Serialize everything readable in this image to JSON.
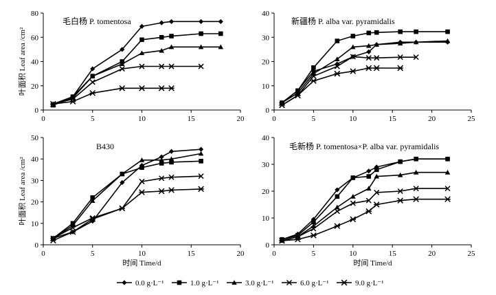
{
  "chart_data": [
    {
      "type": "line",
      "title": "毛白杨 P. tomentosa",
      "xlabel": "",
      "ylabel": "叶面积 Leaf area /cm²",
      "xlim": [
        0,
        20
      ],
      "ylim": [
        0,
        80
      ],
      "xticks": [
        0,
        5,
        10,
        15,
        20
      ],
      "yticks": [
        0,
        20,
        40,
        60,
        80
      ],
      "series": [
        {
          "name": "0.0 g·L⁻¹",
          "marker": "diamond",
          "x": [
            1,
            3,
            5,
            8,
            10,
            12,
            13,
            16,
            18
          ],
          "values": [
            5,
            11,
            34,
            50,
            69,
            72,
            73,
            73,
            73
          ]
        },
        {
          "name": "1.0 g·L⁻¹",
          "marker": "square",
          "x": [
            1,
            3,
            5,
            8,
            10,
            12,
            13,
            16,
            18
          ],
          "values": [
            4,
            11,
            28,
            40,
            58,
            60,
            61,
            63,
            63
          ]
        },
        {
          "name": "3.0 g·L⁻¹",
          "marker": "triangle",
          "x": [
            1,
            3,
            5,
            8,
            10,
            12,
            13,
            16,
            18
          ],
          "values": [
            4,
            10,
            28,
            38,
            47,
            49,
            52,
            52,
            52
          ]
        },
        {
          "name": "6.0 g·L⁻¹",
          "marker": "cross",
          "x": [
            1,
            3,
            5,
            8,
            10,
            12,
            13,
            16
          ],
          "values": [
            5,
            9,
            23,
            34,
            36,
            36,
            36,
            36
          ]
        },
        {
          "name": "9.0 g·L⁻¹",
          "marker": "star",
          "x": [
            1,
            3,
            5,
            8,
            10,
            12,
            13
          ],
          "values": [
            5,
            7,
            14,
            18,
            18,
            18,
            18
          ]
        }
      ]
    },
    {
      "type": "line",
      "title": "新疆杨 P. alba var. pyramidalis",
      "xlabel": "",
      "ylabel": "",
      "xlim": [
        0,
        25
      ],
      "ylim": [
        0,
        40
      ],
      "xticks": [
        0,
        5,
        10,
        15,
        20,
        25
      ],
      "yticks": [
        0,
        10,
        20,
        30,
        40
      ],
      "series": [
        {
          "name": "0.0 g·L⁻¹",
          "marker": "diamond",
          "x": [
            1,
            3,
            5,
            8,
            10,
            12,
            13,
            16,
            18,
            22
          ],
          "values": [
            3,
            8,
            16,
            19,
            22,
            24,
            27,
            28,
            28,
            28
          ]
        },
        {
          "name": "1.0 g·L⁻¹",
          "marker": "square",
          "x": [
            1,
            3,
            5,
            8,
            10,
            12,
            13,
            16,
            18,
            22
          ],
          "values": [
            3,
            8,
            17.5,
            28.5,
            30.5,
            31.8,
            32,
            32.3,
            32.3,
            32.3
          ]
        },
        {
          "name": "3.0 g·L⁻¹",
          "marker": "triangle",
          "x": [
            1,
            3,
            5,
            8,
            10,
            12,
            13,
            16,
            18,
            22
          ],
          "values": [
            3,
            7,
            15,
            21,
            26,
            26.5,
            27,
            27.5,
            28,
            28.5
          ]
        },
        {
          "name": "6.0 g·L⁻¹",
          "marker": "cross",
          "x": [
            1,
            3,
            5,
            8,
            10,
            12,
            13,
            16,
            18
          ],
          "values": [
            2,
            6,
            14,
            18,
            22,
            21.5,
            21.5,
            21.8,
            21.8
          ]
        },
        {
          "name": "9.0 g·L⁻¹",
          "marker": "star",
          "x": [
            1,
            3,
            5,
            8,
            10,
            12,
            13,
            16
          ],
          "values": [
            2,
            6,
            12,
            15,
            16,
            17.3,
            17.3,
            17.3
          ]
        }
      ]
    },
    {
      "type": "line",
      "title": "B430",
      "xlabel": "时间 Time/d",
      "ylabel": "叶面积 Leaf area /cm²",
      "xlim": [
        0,
        20
      ],
      "ylim": [
        0,
        50
      ],
      "xticks": [
        0,
        5,
        10,
        15,
        20
      ],
      "yticks": [
        0,
        10,
        20,
        30,
        40,
        50
      ],
      "series": [
        {
          "name": "0.0 g·L⁻¹",
          "marker": "diamond",
          "x": [
            1,
            3,
            5,
            8,
            10,
            12,
            13,
            16
          ],
          "values": [
            3,
            6,
            11,
            29,
            37,
            41,
            43.5,
            44.5
          ]
        },
        {
          "name": "1.0 g·L⁻¹",
          "marker": "square",
          "x": [
            1,
            3,
            5,
            8,
            10,
            12,
            13,
            16
          ],
          "values": [
            3,
            10,
            22,
            33,
            36,
            38,
            38.5,
            39
          ]
        },
        {
          "name": "3.0 g·L⁻¹",
          "marker": "triangle",
          "x": [
            1,
            3,
            5,
            8,
            10,
            12,
            13,
            16
          ],
          "values": [
            3,
            9,
            20.5,
            33,
            39.5,
            39.5,
            40,
            42.5
          ]
        },
        {
          "name": "6.0 g·L⁻¹",
          "marker": "cross",
          "x": [
            1,
            3,
            5,
            8,
            10,
            12,
            13,
            16
          ],
          "values": [
            3,
            8,
            12.5,
            17,
            29.5,
            31,
            31.5,
            32
          ]
        },
        {
          "name": "9.0 g·L⁻¹",
          "marker": "star",
          "x": [
            1,
            3,
            5,
            8,
            10,
            12,
            13,
            16
          ],
          "values": [
            2,
            6,
            12,
            17,
            24.5,
            25,
            25.5,
            26
          ]
        }
      ]
    },
    {
      "type": "line",
      "title": "毛新杨 P. tomentosa×P. alba var. pyramidalis",
      "xlabel": "时间 Time/d",
      "ylabel": "",
      "xlim": [
        0,
        25
      ],
      "ylim": [
        0,
        40
      ],
      "xticks": [
        0,
        5,
        10,
        15,
        20,
        25
      ],
      "yticks": [
        0,
        10,
        20,
        30,
        40
      ],
      "series": [
        {
          "name": "0.0 g·L⁻¹",
          "marker": "diamond",
          "x": [
            1,
            3,
            5,
            8,
            10,
            12,
            13,
            16,
            18,
            22
          ],
          "values": [
            2,
            4,
            9.5,
            20.5,
            25,
            27.5,
            29,
            31,
            32,
            32
          ]
        },
        {
          "name": "1.0 g·L⁻¹",
          "marker": "square",
          "x": [
            1,
            3,
            5,
            8,
            10,
            12,
            13,
            16,
            18,
            22
          ],
          "values": [
            2,
            3.5,
            8.5,
            18,
            25,
            25.5,
            28,
            31,
            32,
            32
          ]
        },
        {
          "name": "3.0 g·L⁻¹",
          "marker": "triangle",
          "x": [
            1,
            3,
            5,
            8,
            10,
            12,
            13,
            16,
            18,
            22
          ],
          "values": [
            1.5,
            3,
            7,
            14,
            18,
            21,
            25.5,
            26,
            27,
            27
          ]
        },
        {
          "name": "6.0 g·L⁻¹",
          "marker": "cross",
          "x": [
            1,
            3,
            5,
            8,
            10,
            12,
            13,
            16,
            18,
            22
          ],
          "values": [
            1.5,
            3,
            6,
            12.5,
            15.5,
            16.5,
            19.5,
            20,
            21,
            21
          ]
        },
        {
          "name": "9.0 g·L⁻¹",
          "marker": "star",
          "x": [
            1,
            3,
            5,
            8,
            10,
            12,
            13,
            16,
            18,
            22
          ],
          "values": [
            1.5,
            2,
            3.5,
            7,
            9.5,
            12.5,
            15,
            16.5,
            17,
            17
          ]
        }
      ]
    }
  ],
  "legend": [
    {
      "label": "0.0 g·L⁻¹",
      "marker": "diamond"
    },
    {
      "label": "1.0 g·L⁻¹",
      "marker": "square"
    },
    {
      "label": "3.0 g·L⁻¹",
      "marker": "triangle"
    },
    {
      "label": "6.0 g·L⁻¹",
      "marker": "cross"
    },
    {
      "label": "9.0 g·L⁻¹",
      "marker": "star"
    }
  ],
  "colors": {
    "line": "#000000",
    "background": "#ffffff"
  }
}
